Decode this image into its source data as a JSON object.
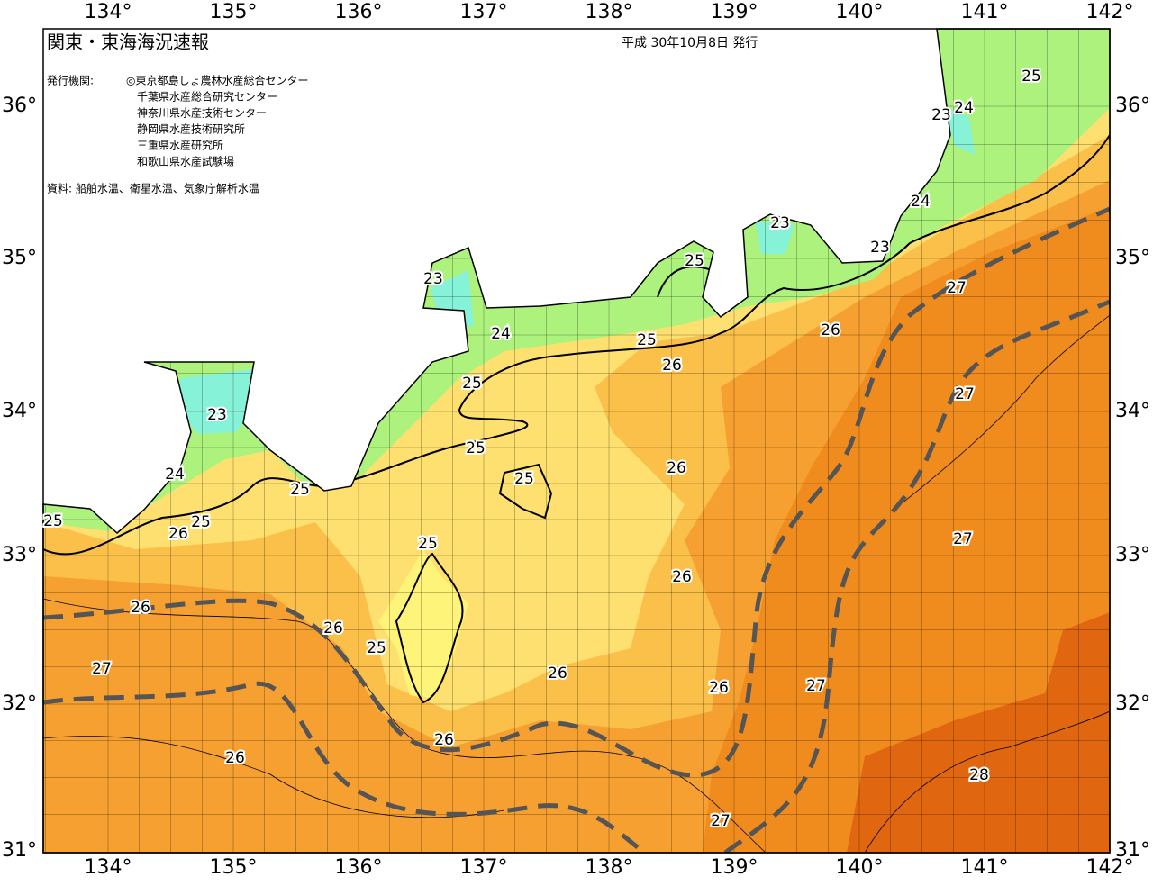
{
  "header": {
    "title": "関東・東海海況速報",
    "date": "平成 30年10月8日 発行",
    "issuer_label": "発行機関:",
    "issuers": [
      "◎東京都島しょ農林水産総合センター",
      "千葉県水産総合研究センター",
      "神奈川県水産技術センター",
      "静岡県水産技術研究所",
      "三重県水産研究所",
      "和歌山県水産試験場"
    ],
    "source": "資料: 船舶水温、衛星水温、気象庁解析水温"
  },
  "map": {
    "lon_labels": [
      "134°",
      "135°",
      "136°",
      "137°",
      "138°",
      "139°",
      "140°",
      "141°",
      "142°"
    ],
    "lat_labels": [
      "36°",
      "35°",
      "34°",
      "33°",
      "32°",
      "31°"
    ],
    "contour_labels": [
      25,
      23,
      24,
      24,
      23,
      23,
      25,
      27,
      23,
      24,
      25,
      26,
      26,
      25,
      27,
      23,
      25,
      26,
      24,
      25,
      25,
      25,
      25,
      26,
      27,
      25,
      26,
      26,
      26,
      25,
      27,
      26,
      26,
      27,
      26,
      26,
      28,
      27
    ]
  }
}
